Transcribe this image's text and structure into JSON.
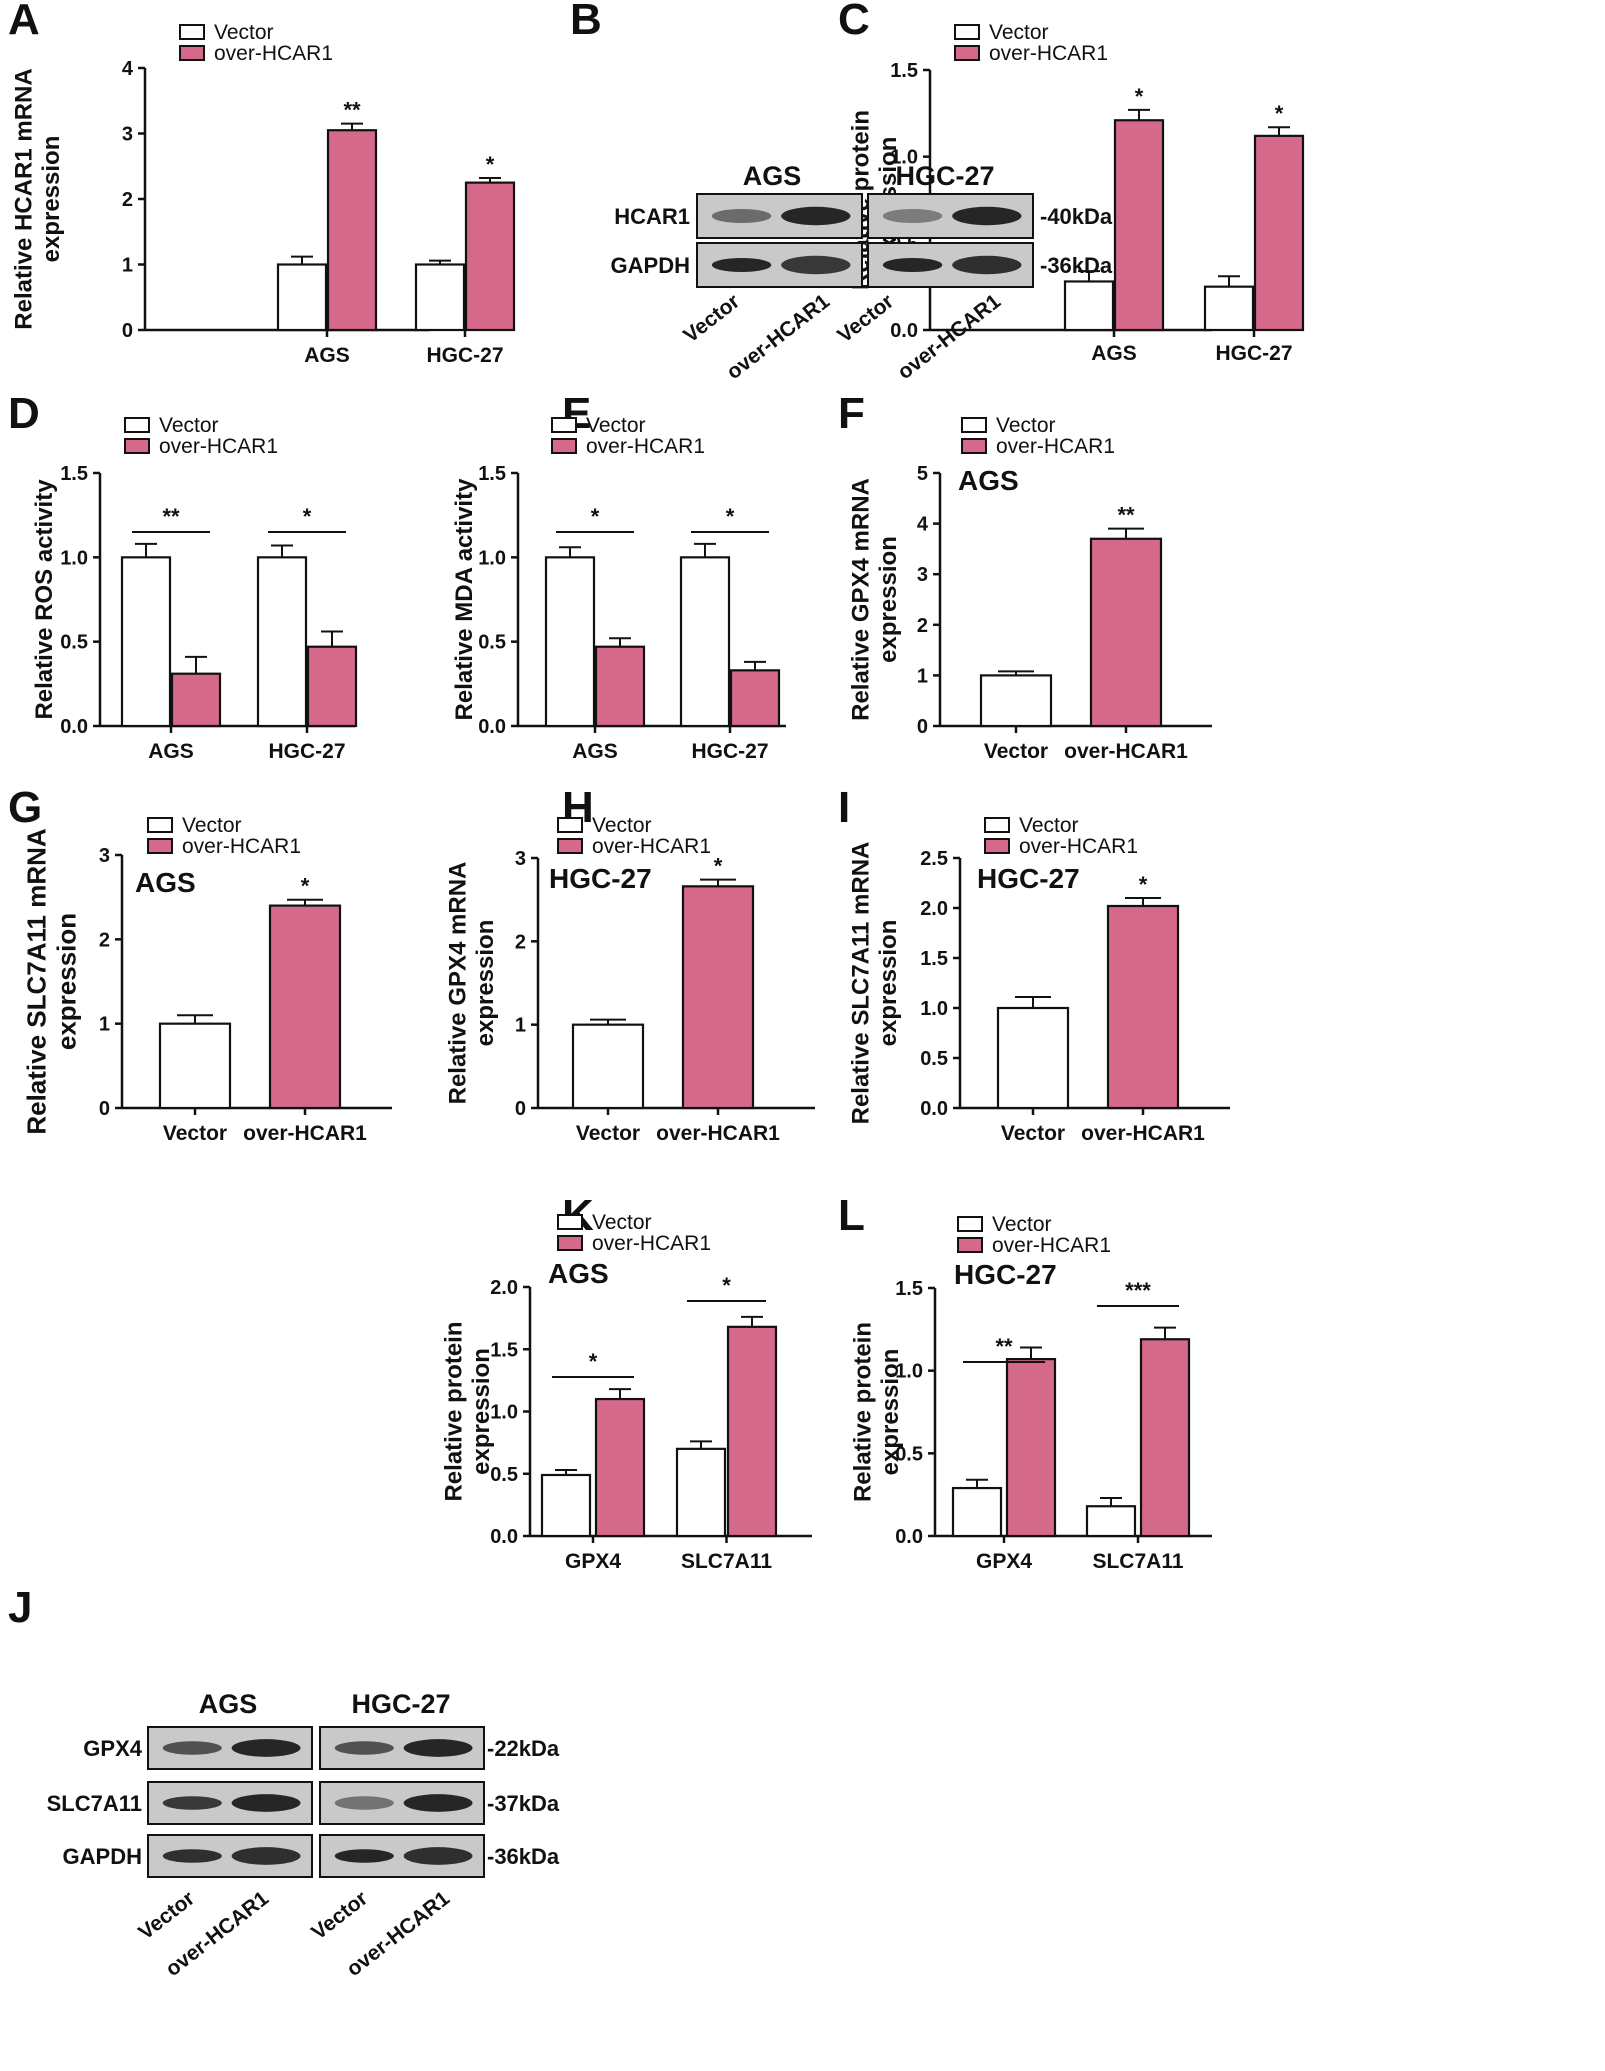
{
  "colors": {
    "vector": "#ffffff",
    "over": "#d4698a",
    "stroke": "#111111",
    "blot_bg": "#c9c9c9",
    "band": "#1e1e1e"
  },
  "legend": {
    "vector": "Vector",
    "over": "over-HCAR1"
  },
  "chart_data": [
    {
      "panel": "A",
      "type": "bar",
      "title": "",
      "categories": [
        "AGS",
        "HGC-27"
      ],
      "ylabel": "Relative HCAR1 mRNA expression",
      "ylim": [
        0,
        4
      ],
      "yticks": [
        "0",
        "1",
        "2",
        "3",
        "4"
      ],
      "series": [
        {
          "name": "Vector",
          "values": [
            1.0,
            1.0
          ],
          "errors": [
            0.12,
            0.06
          ]
        },
        {
          "name": "over-HCAR1",
          "values": [
            3.05,
            2.25
          ],
          "errors": [
            0.1,
            0.07
          ]
        }
      ],
      "significance": [
        "**",
        "*"
      ]
    },
    {
      "panel": "C",
      "type": "bar",
      "title": "",
      "categories": [
        "AGS",
        "HGC-27"
      ],
      "ylabel": "Relative protein expression",
      "ylim": [
        0,
        1.5
      ],
      "yticks": [
        "0.0",
        "0.5",
        "1.0",
        "1.5"
      ],
      "series": [
        {
          "name": "Vector",
          "values": [
            0.28,
            0.25
          ],
          "errors": [
            0.06,
            0.06
          ]
        },
        {
          "name": "over-HCAR1",
          "values": [
            1.21,
            1.12
          ],
          "errors": [
            0.06,
            0.05
          ]
        }
      ],
      "significance": [
        "*",
        "*"
      ]
    },
    {
      "panel": "D",
      "type": "bar",
      "title": "",
      "categories": [
        "AGS",
        "HGC-27"
      ],
      "ylabel": "Relative ROS activity",
      "ylim": [
        0,
        1.5
      ],
      "yticks": [
        "0.0",
        "0.5",
        "1.0",
        "1.5"
      ],
      "series": [
        {
          "name": "Vector",
          "values": [
            1.0,
            1.0
          ],
          "errors": [
            0.08,
            0.07
          ]
        },
        {
          "name": "over-HCAR1",
          "values": [
            0.31,
            0.47
          ],
          "errors": [
            0.1,
            0.09
          ]
        }
      ],
      "significance": [
        "**",
        "*"
      ]
    },
    {
      "panel": "E",
      "type": "bar",
      "title": "",
      "categories": [
        "AGS",
        "HGC-27"
      ],
      "ylabel": "Relative MDA activity",
      "ylim": [
        0,
        1.5
      ],
      "yticks": [
        "0.0",
        "0.5",
        "1.0",
        "1.5"
      ],
      "series": [
        {
          "name": "Vector",
          "values": [
            1.0,
            1.0
          ],
          "errors": [
            0.06,
            0.08
          ]
        },
        {
          "name": "over-HCAR1",
          "values": [
            0.47,
            0.33
          ],
          "errors": [
            0.05,
            0.05
          ]
        }
      ],
      "significance": [
        "*",
        "*"
      ]
    },
    {
      "panel": "F",
      "type": "bar",
      "title": "AGS",
      "categories": [
        "Vector",
        "over-HCAR1"
      ],
      "ylabel": "Relative GPX4 mRNA expression",
      "ylim": [
        0,
        5
      ],
      "yticks": [
        "0",
        "1",
        "2",
        "3",
        "4",
        "5"
      ],
      "values": [
        1.0,
        3.7
      ],
      "errors": [
        0.08,
        0.2
      ],
      "significance": "**"
    },
    {
      "panel": "G",
      "type": "bar",
      "title": "AGS",
      "categories": [
        "Vector",
        "over-HCAR1"
      ],
      "ylabel": "Relative SLC7A11 mRNA expression",
      "ylim": [
        0,
        3
      ],
      "yticks": [
        "0",
        "1",
        "2",
        "3"
      ],
      "values": [
        1.0,
        2.4
      ],
      "errors": [
        0.1,
        0.07
      ],
      "significance": "*"
    },
    {
      "panel": "H",
      "type": "bar",
      "title": "HGC-27",
      "categories": [
        "Vector",
        "over-HCAR1"
      ],
      "ylabel": "Relative GPX4 mRNA expression",
      "ylim": [
        0,
        3
      ],
      "yticks": [
        "0",
        "1",
        "2",
        "3"
      ],
      "values": [
        1.0,
        2.66
      ],
      "errors": [
        0.06,
        0.08
      ],
      "significance": "*"
    },
    {
      "panel": "I",
      "type": "bar",
      "title": "HGC-27",
      "categories": [
        "Vector",
        "over-HCAR1"
      ],
      "ylabel": "Relative SLC7A11 mRNA expression",
      "ylim": [
        0,
        2.5
      ],
      "yticks": [
        "0.0",
        "0.5",
        "1.0",
        "1.5",
        "2.0",
        "2.5"
      ],
      "values": [
        1.0,
        2.02
      ],
      "errors": [
        0.11,
        0.08
      ],
      "significance": "*"
    },
    {
      "panel": "K",
      "type": "bar",
      "title": "AGS",
      "categories": [
        "GPX4",
        "SLC7A11"
      ],
      "ylabel": "Relative protein expression",
      "ylim": [
        0,
        2.0
      ],
      "yticks": [
        "0.0",
        "0.5",
        "1.0",
        "1.5",
        "2.0"
      ],
      "series": [
        {
          "name": "Vector",
          "values": [
            0.49,
            0.7
          ],
          "errors": [
            0.04,
            0.06
          ]
        },
        {
          "name": "over-HCAR1",
          "values": [
            1.1,
            1.68
          ],
          "errors": [
            0.08,
            0.08
          ]
        }
      ],
      "significance": [
        "*",
        "*"
      ]
    },
    {
      "panel": "L",
      "type": "bar",
      "title": "HGC-27",
      "categories": [
        "GPX4",
        "SLC7A11"
      ],
      "ylabel": "Relative protein expression",
      "ylim": [
        0,
        1.5
      ],
      "yticks": [
        "0.0",
        "0.5",
        "1.0",
        "1.5"
      ],
      "series": [
        {
          "name": "Vector",
          "values": [
            0.29,
            0.18
          ],
          "errors": [
            0.05,
            0.05
          ]
        },
        {
          "name": "over-HCAR1",
          "values": [
            1.07,
            1.19
          ],
          "errors": [
            0.07,
            0.07
          ]
        }
      ],
      "significance": [
        "**",
        "***"
      ]
    }
  ],
  "blots": {
    "B": {
      "letter": "B",
      "cells": [
        "AGS",
        "HGC-27"
      ],
      "rows": [
        {
          "name": "HCAR1",
          "kda": "-40kDa"
        },
        {
          "name": "GAPDH",
          "kda": "-36kDa"
        }
      ],
      "lanes": [
        "Vector",
        "over-HCAR1",
        "Vector",
        "over-HCAR1"
      ]
    },
    "J": {
      "letter": "J",
      "cells": [
        "AGS",
        "HGC-27"
      ],
      "rows": [
        {
          "name": "GPX4",
          "kda": "-22kDa"
        },
        {
          "name": "SLC7A11",
          "kda": "-37kDa"
        },
        {
          "name": "GAPDH",
          "kda": "-36kDa"
        }
      ],
      "lanes": [
        "Vector",
        "over-HCAR1",
        "Vector",
        "over-HCAR1"
      ]
    }
  }
}
